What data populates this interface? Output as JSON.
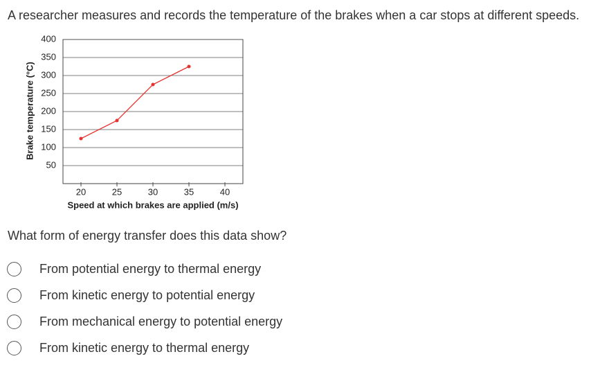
{
  "intro": "A researcher measures and records the temperature of the brakes when a car stops at different speeds.",
  "chart_data": {
    "type": "line",
    "x_label": "Speed at which brakes are applied (m/s)",
    "y_label": "Brake temperature (°C)",
    "x": [
      20,
      25,
      30,
      35
    ],
    "values": [
      125,
      175,
      275,
      325
    ],
    "color": "#e8312f",
    "xlim": [
      17.5,
      42.5
    ],
    "xticks": [
      20,
      25,
      30,
      35,
      40
    ],
    "ylim": [
      0,
      400
    ],
    "yticks": [
      50,
      100,
      150,
      200,
      250,
      300,
      350,
      400
    ],
    "grid": true
  },
  "question": "What form of energy transfer does this data show?",
  "options": [
    "From potential energy to thermal energy",
    "From kinetic energy to potential energy",
    "From mechanical energy to potential energy",
    "From kinetic energy to thermal energy"
  ]
}
